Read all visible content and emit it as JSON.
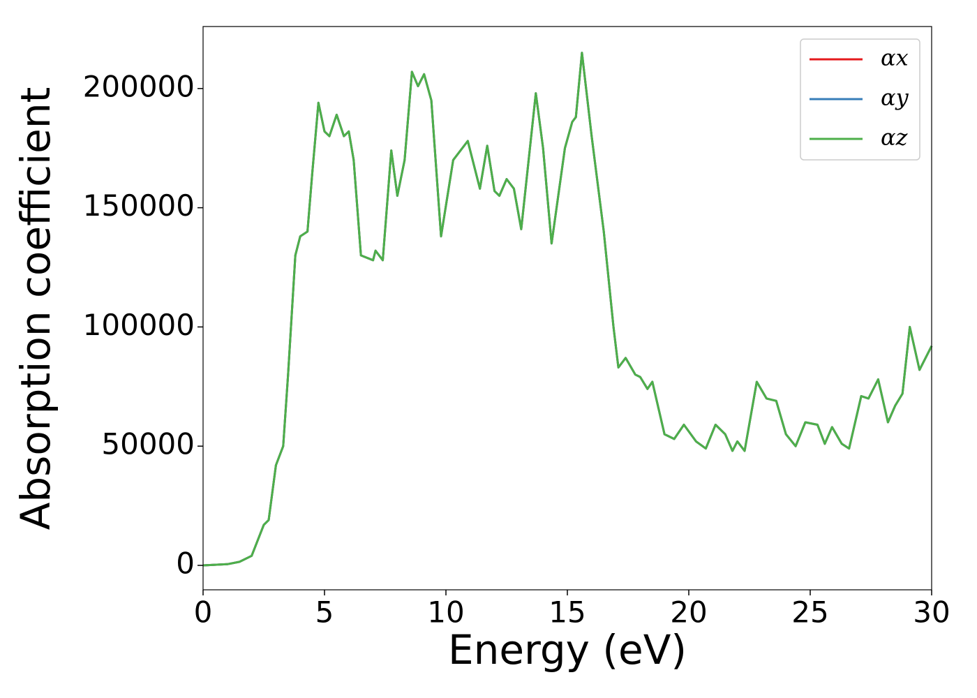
{
  "chart_data": {
    "type": "line",
    "xlabel": "Energy (eV)",
    "ylabel": "Absorption coefficient",
    "xlim": [
      0,
      30
    ],
    "xticks": [
      0,
      5,
      10,
      15,
      20,
      25,
      30
    ],
    "ylim": [
      -10250,
      226000
    ],
    "yticks": [
      0,
      50000,
      100000,
      150000,
      200000
    ],
    "legend": "upper right",
    "x": [
      0,
      1,
      1.5,
      2,
      2.5,
      2.7,
      3,
      3.3,
      3.5,
      3.8,
      4,
      4.3,
      4.5,
      4.75,
      5,
      5.2,
      5.5,
      5.8,
      6,
      6.2,
      6.5,
      7,
      7.1,
      7.4,
      7.75,
      8,
      8.3,
      8.6,
      8.85,
      9.1,
      9.4,
      9.8,
      10.3,
      10.9,
      11.4,
      11.7,
      12,
      12.2,
      12.5,
      12.8,
      13.1,
      13.7,
      14,
      14.35,
      14.9,
      15.2,
      15.35,
      15.6,
      16,
      16.5,
      16.9,
      17.1,
      17.4,
      17.8,
      18,
      18.3,
      18.5,
      19,
      19.4,
      19.8,
      20.3,
      20.7,
      21.1,
      21.5,
      21.8,
      22,
      22.3,
      22.8,
      23.2,
      23.6,
      24,
      24.4,
      24.8,
      25.3,
      25.6,
      25.9,
      26.3,
      26.6,
      27.1,
      27.4,
      27.8,
      28.2,
      28.5,
      28.8,
      29.1,
      29.5,
      30
    ],
    "series": [
      {
        "name": "αx",
        "color": "#e41a1c",
        "values": [
          0,
          500,
          1500,
          4000,
          17000,
          19000,
          42000,
          50000,
          80000,
          130000,
          138000,
          140000,
          165000,
          194000,
          182000,
          180000,
          189000,
          180000,
          182000,
          170000,
          130000,
          128000,
          132000,
          128000,
          174000,
          155000,
          170000,
          207000,
          201000,
          206000,
          195000,
          138000,
          170000,
          178000,
          158000,
          176000,
          157000,
          155000,
          162000,
          158000,
          141000,
          198000,
          175000,
          135000,
          175000,
          186000,
          188000,
          215000,
          180000,
          140000,
          100000,
          83000,
          87000,
          80000,
          79000,
          74000,
          77000,
          55000,
          53000,
          59000,
          52000,
          49000,
          59000,
          55000,
          48000,
          52000,
          48000,
          77000,
          70000,
          69000,
          55000,
          50000,
          60000,
          59000,
          51000,
          58000,
          51000,
          49000,
          71000,
          70000,
          78000,
          60000,
          67000,
          72000,
          100000,
          82000,
          92000
        ]
      },
      {
        "name": "αy",
        "color": "#377eb8",
        "values": [
          0,
          500,
          1500,
          4000,
          17000,
          19000,
          42000,
          50000,
          80000,
          130000,
          138000,
          140000,
          165000,
          194000,
          182000,
          180000,
          189000,
          180000,
          182000,
          170000,
          130000,
          128000,
          132000,
          128000,
          174000,
          155000,
          170000,
          207000,
          201000,
          206000,
          195000,
          138000,
          170000,
          178000,
          158000,
          176000,
          157000,
          155000,
          162000,
          158000,
          141000,
          198000,
          175000,
          135000,
          175000,
          186000,
          188000,
          215000,
          180000,
          140000,
          100000,
          83000,
          87000,
          80000,
          79000,
          74000,
          77000,
          55000,
          53000,
          59000,
          52000,
          49000,
          59000,
          55000,
          48000,
          52000,
          48000,
          77000,
          70000,
          69000,
          55000,
          50000,
          60000,
          59000,
          51000,
          58000,
          51000,
          49000,
          71000,
          70000,
          78000,
          60000,
          67000,
          72000,
          100000,
          82000,
          92000
        ]
      },
      {
        "name": "αz",
        "color": "#4daf4a",
        "values": [
          0,
          500,
          1500,
          4000,
          17000,
          19000,
          42000,
          50000,
          80000,
          130000,
          138000,
          140000,
          165000,
          194000,
          182000,
          180000,
          189000,
          180000,
          182000,
          170000,
          130000,
          128000,
          132000,
          128000,
          174000,
          155000,
          170000,
          207000,
          201000,
          206000,
          195000,
          138000,
          170000,
          178000,
          158000,
          176000,
          157000,
          155000,
          162000,
          158000,
          141000,
          198000,
          175000,
          135000,
          175000,
          186000,
          188000,
          215000,
          180000,
          140000,
          100000,
          83000,
          87000,
          80000,
          79000,
          74000,
          77000,
          55000,
          53000,
          59000,
          52000,
          49000,
          59000,
          55000,
          48000,
          52000,
          48000,
          77000,
          70000,
          69000,
          55000,
          50000,
          60000,
          59000,
          51000,
          58000,
          51000,
          49000,
          71000,
          70000,
          78000,
          60000,
          67000,
          72000,
          100000,
          82000,
          92000
        ]
      }
    ]
  }
}
